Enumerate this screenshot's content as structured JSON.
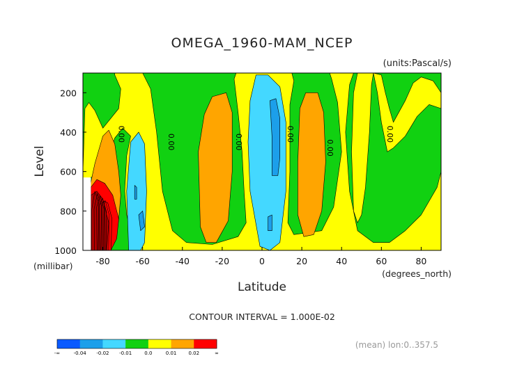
{
  "chart_data": {
    "type": "contour",
    "title": "OMEGA_1960-MAM_NCEP",
    "units": "(units:Pascal/s)",
    "xlabel": "Latitude",
    "ylabel": "Level",
    "x_unit": "(degrees_north)",
    "y_unit": "(millibar)",
    "x_range": [
      -90,
      90
    ],
    "y_range": [
      100,
      1000
    ],
    "x_ticks": [
      "-80",
      "-60",
      "-40",
      "-20",
      "0",
      "20",
      "40",
      "60",
      "80"
    ],
    "x_tick_values": [
      -80,
      -60,
      -40,
      -20,
      0,
      20,
      40,
      60,
      80
    ],
    "y_ticks": [
      "200",
      "400",
      "600",
      "800",
      "1000"
    ],
    "y_tick_values": [
      200,
      400,
      600,
      800,
      1000
    ],
    "contour_interval": "CONTOUR INTERVAL = 1.000E-02",
    "contour_labels": [
      "0.00",
      "0.00",
      "0.00",
      "0.00",
      "0.00",
      "0.00"
    ],
    "colorbar": {
      "labels": [
        "-∞",
        "-0.04",
        "-0.02",
        "-0.01",
        "0.0",
        "0.01",
        "0.02",
        "∞"
      ],
      "colors": [
        "#0a5aff",
        "#1c9fea",
        "#44d8ff",
        "#11d111",
        "#ffff00",
        "#ffa500",
        "#ff0000"
      ]
    },
    "footnote": "(mean) lon:0..357.5",
    "regions": [
      {
        "color": "#ffa500",
        "outline": [
          [
            -88,
            940
          ],
          [
            -87,
            700
          ],
          [
            -84,
            560
          ],
          [
            -80,
            420
          ],
          [
            -77,
            390
          ],
          [
            -74,
            460
          ],
          [
            -72,
            600
          ],
          [
            -71,
            720
          ],
          [
            -72,
            840
          ],
          [
            -74,
            960
          ],
          [
            -80,
            1000
          ],
          [
            -86,
            1000
          ]
        ]
      },
      {
        "color": "#ff0000",
        "outline": [
          [
            -86,
            1000
          ],
          [
            -86,
            680
          ],
          [
            -83,
            640
          ],
          [
            -79,
            660
          ],
          [
            -75,
            720
          ],
          [
            -72,
            840
          ],
          [
            -73,
            940
          ],
          [
            -76,
            1000
          ]
        ]
      },
      {
        "color": "#44d8ff",
        "outline": [
          [
            -67,
            1000
          ],
          [
            -68,
            700
          ],
          [
            -66,
            450
          ],
          [
            -62,
            400
          ],
          [
            -59,
            460
          ],
          [
            -58,
            700
          ],
          [
            -59,
            960
          ],
          [
            -61,
            1000
          ]
        ]
      },
      {
        "color": "#1c9fea",
        "outline": [
          [
            -64,
            740
          ],
          [
            -64,
            670
          ],
          [
            -63,
            680
          ],
          [
            -63,
            740
          ]
        ]
      },
      {
        "color": "#1c9fea",
        "outline": [
          [
            -61,
            900
          ],
          [
            -62,
            820
          ],
          [
            -60,
            800
          ],
          [
            -59,
            880
          ]
        ]
      },
      {
        "color": "#ffa500",
        "outline": [
          [
            -31,
            880
          ],
          [
            -32,
            500
          ],
          [
            -29,
            310
          ],
          [
            -25,
            220
          ],
          [
            -18,
            200
          ],
          [
            -15,
            300
          ],
          [
            -15,
            600
          ],
          [
            -17,
            850
          ],
          [
            -23,
            960
          ],
          [
            -28,
            960
          ]
        ]
      },
      {
        "color": "#44d8ff",
        "outline": [
          [
            -1,
            980
          ],
          [
            -6,
            700
          ],
          [
            -7,
            450
          ],
          [
            -6,
            240
          ],
          [
            -3,
            110
          ],
          [
            3,
            110
          ],
          [
            9,
            170
          ],
          [
            12,
            350
          ],
          [
            12,
            700
          ],
          [
            9,
            960
          ],
          [
            4,
            1000
          ]
        ]
      },
      {
        "color": "#1c9fea",
        "outline": [
          [
            5,
            620
          ],
          [
            5,
            420
          ],
          [
            4,
            240
          ],
          [
            7,
            230
          ],
          [
            9,
            330
          ],
          [
            9,
            530
          ],
          [
            8,
            620
          ]
        ]
      },
      {
        "color": "#1c9fea",
        "outline": [
          [
            3,
            900
          ],
          [
            3,
            830
          ],
          [
            5,
            820
          ],
          [
            5,
            900
          ]
        ]
      },
      {
        "color": "#ffa500",
        "outline": [
          [
            18,
            820
          ],
          [
            18,
            550
          ],
          [
            19,
            280
          ],
          [
            22,
            200
          ],
          [
            28,
            200
          ],
          [
            31,
            300
          ],
          [
            32,
            550
          ],
          [
            30,
            800
          ],
          [
            26,
            920
          ],
          [
            21,
            930
          ]
        ]
      }
    ],
    "green_background_outline": [
      [
        -90,
        100
      ],
      [
        90,
        100
      ],
      [
        90,
        1000
      ],
      [
        -90,
        1000
      ]
    ],
    "yellow_bands": [
      {
        "outline": [
          [
            -90,
            600
          ],
          [
            -89,
            280
          ],
          [
            -87,
            250
          ],
          [
            -84,
            290
          ],
          [
            -80,
            380
          ],
          [
            -76,
            330
          ],
          [
            -72,
            280
          ],
          [
            -71,
            180
          ],
          [
            -74,
            110
          ],
          [
            -74,
            100
          ],
          [
            -60,
            100
          ],
          [
            -56,
            180
          ],
          [
            -53,
            400
          ],
          [
            -50,
            700
          ],
          [
            -45,
            900
          ],
          [
            -38,
            960
          ],
          [
            -25,
            970
          ],
          [
            -12,
            930
          ],
          [
            -8,
            860
          ],
          [
            -9,
            700
          ],
          [
            -10,
            500
          ],
          [
            -12,
            300
          ],
          [
            -14,
            130
          ],
          [
            -13,
            100
          ],
          [
            15,
            100
          ],
          [
            16,
            140
          ],
          [
            14,
            260
          ],
          [
            14,
            600
          ],
          [
            13,
            860
          ],
          [
            16,
            920
          ],
          [
            30,
            900
          ],
          [
            36,
            780
          ],
          [
            40,
            500
          ],
          [
            38,
            250
          ],
          [
            35,
            130
          ],
          [
            34,
            100
          ],
          [
            46,
            100
          ],
          [
            44,
            160
          ],
          [
            42,
            400
          ],
          [
            44,
            700
          ],
          [
            48,
            900
          ],
          [
            56,
            960
          ],
          [
            64,
            960
          ],
          [
            72,
            900
          ],
          [
            80,
            820
          ],
          [
            88,
            680
          ],
          [
            90,
            600
          ],
          [
            90,
            200
          ],
          [
            86,
            140
          ],
          [
            80,
            120
          ],
          [
            76,
            150
          ],
          [
            72,
            240
          ],
          [
            66,
            350
          ],
          [
            64,
            280
          ],
          [
            62,
            200
          ],
          [
            60,
            110
          ],
          [
            56,
            100
          ],
          [
            55,
            160
          ],
          [
            54,
            400
          ],
          [
            52,
            680
          ],
          [
            50,
            820
          ],
          [
            48,
            860
          ],
          [
            46,
            800
          ],
          [
            45,
            500
          ],
          [
            46,
            200
          ],
          [
            48,
            100
          ],
          [
            56,
            100
          ],
          [
            58,
            200
          ],
          [
            60,
            350
          ],
          [
            63,
            500
          ],
          [
            66,
            480
          ],
          [
            72,
            420
          ],
          [
            78,
            320
          ],
          [
            84,
            260
          ],
          [
            90,
            280
          ],
          [
            90,
            1000
          ],
          [
            -62,
            1000
          ],
          [
            -62,
            960
          ],
          [
            -66,
            900
          ],
          [
            -68,
            820
          ],
          [
            -69,
            700
          ],
          [
            -68,
            520
          ],
          [
            -66,
            420
          ],
          [
            -70,
            380
          ],
          [
            -74,
            430
          ],
          [
            -76,
            500
          ],
          [
            -80,
            560
          ],
          [
            -84,
            620
          ],
          [
            -88,
            640
          ],
          [
            -90,
            640
          ]
        ]
      }
    ]
  }
}
